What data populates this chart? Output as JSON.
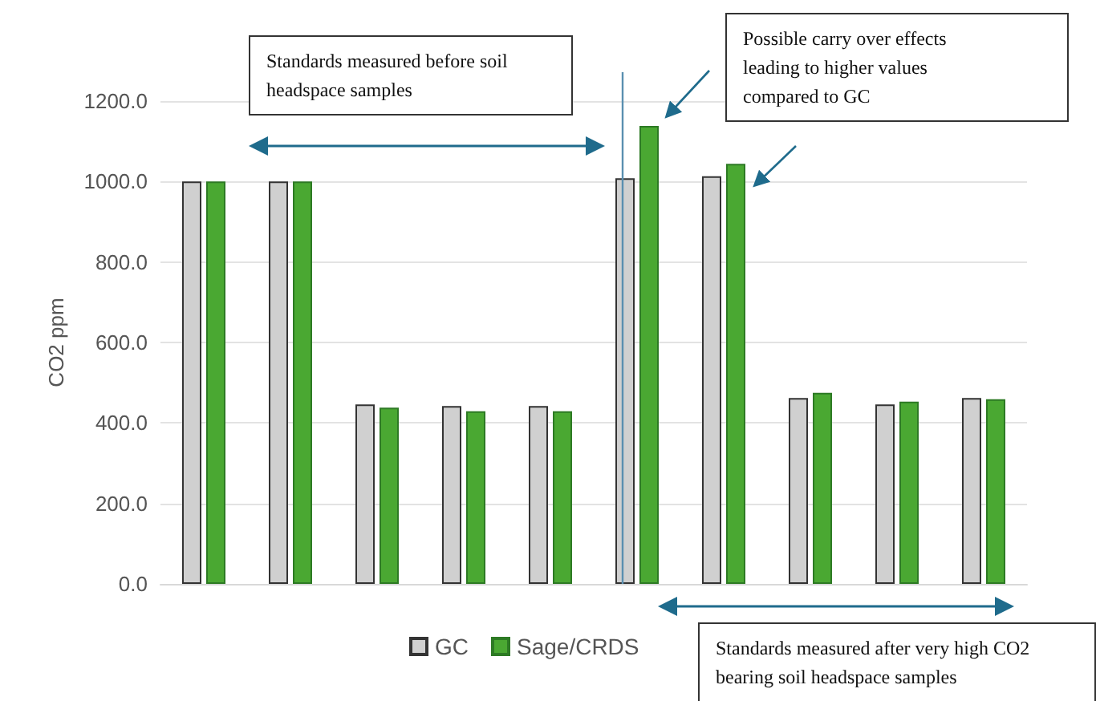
{
  "chart_data": {
    "type": "bar",
    "ylabel": "CO2 ppm",
    "categories": [
      null,
      null,
      null,
      null,
      null,
      null,
      null,
      null,
      null,
      null
    ],
    "series": [
      {
        "name": "GC",
        "color": "#d0d0d0",
        "values": [
          1000,
          1000,
          446,
          442,
          442,
          1008,
          1013,
          462,
          446,
          462
        ]
      },
      {
        "name": "Sage/CRDS",
        "color": "#4aa832",
        "values": [
          1000,
          1000,
          438,
          429,
          429,
          1138,
          1044,
          475,
          453,
          459
        ]
      }
    ],
    "ylim": [
      0,
      1200
    ],
    "yticks": [
      {
        "value": 0,
        "label": "0.0"
      },
      {
        "value": 200,
        "label": "200.0"
      },
      {
        "value": 400,
        "label": "400.0"
      },
      {
        "value": 600,
        "label": "600.0"
      },
      {
        "value": 800,
        "label": "800.0"
      },
      {
        "value": 1000,
        "label": "1000.0"
      },
      {
        "value": 1200,
        "label": "1200.0"
      }
    ],
    "grid": "y",
    "legend": "bottom",
    "annotations": [
      "Standards measured before soil headspace samples",
      "Possible carry over effects leading to higher values compared to GC",
      "Standards measured after very high CO2 bearing soil headspace samples"
    ]
  }
}
